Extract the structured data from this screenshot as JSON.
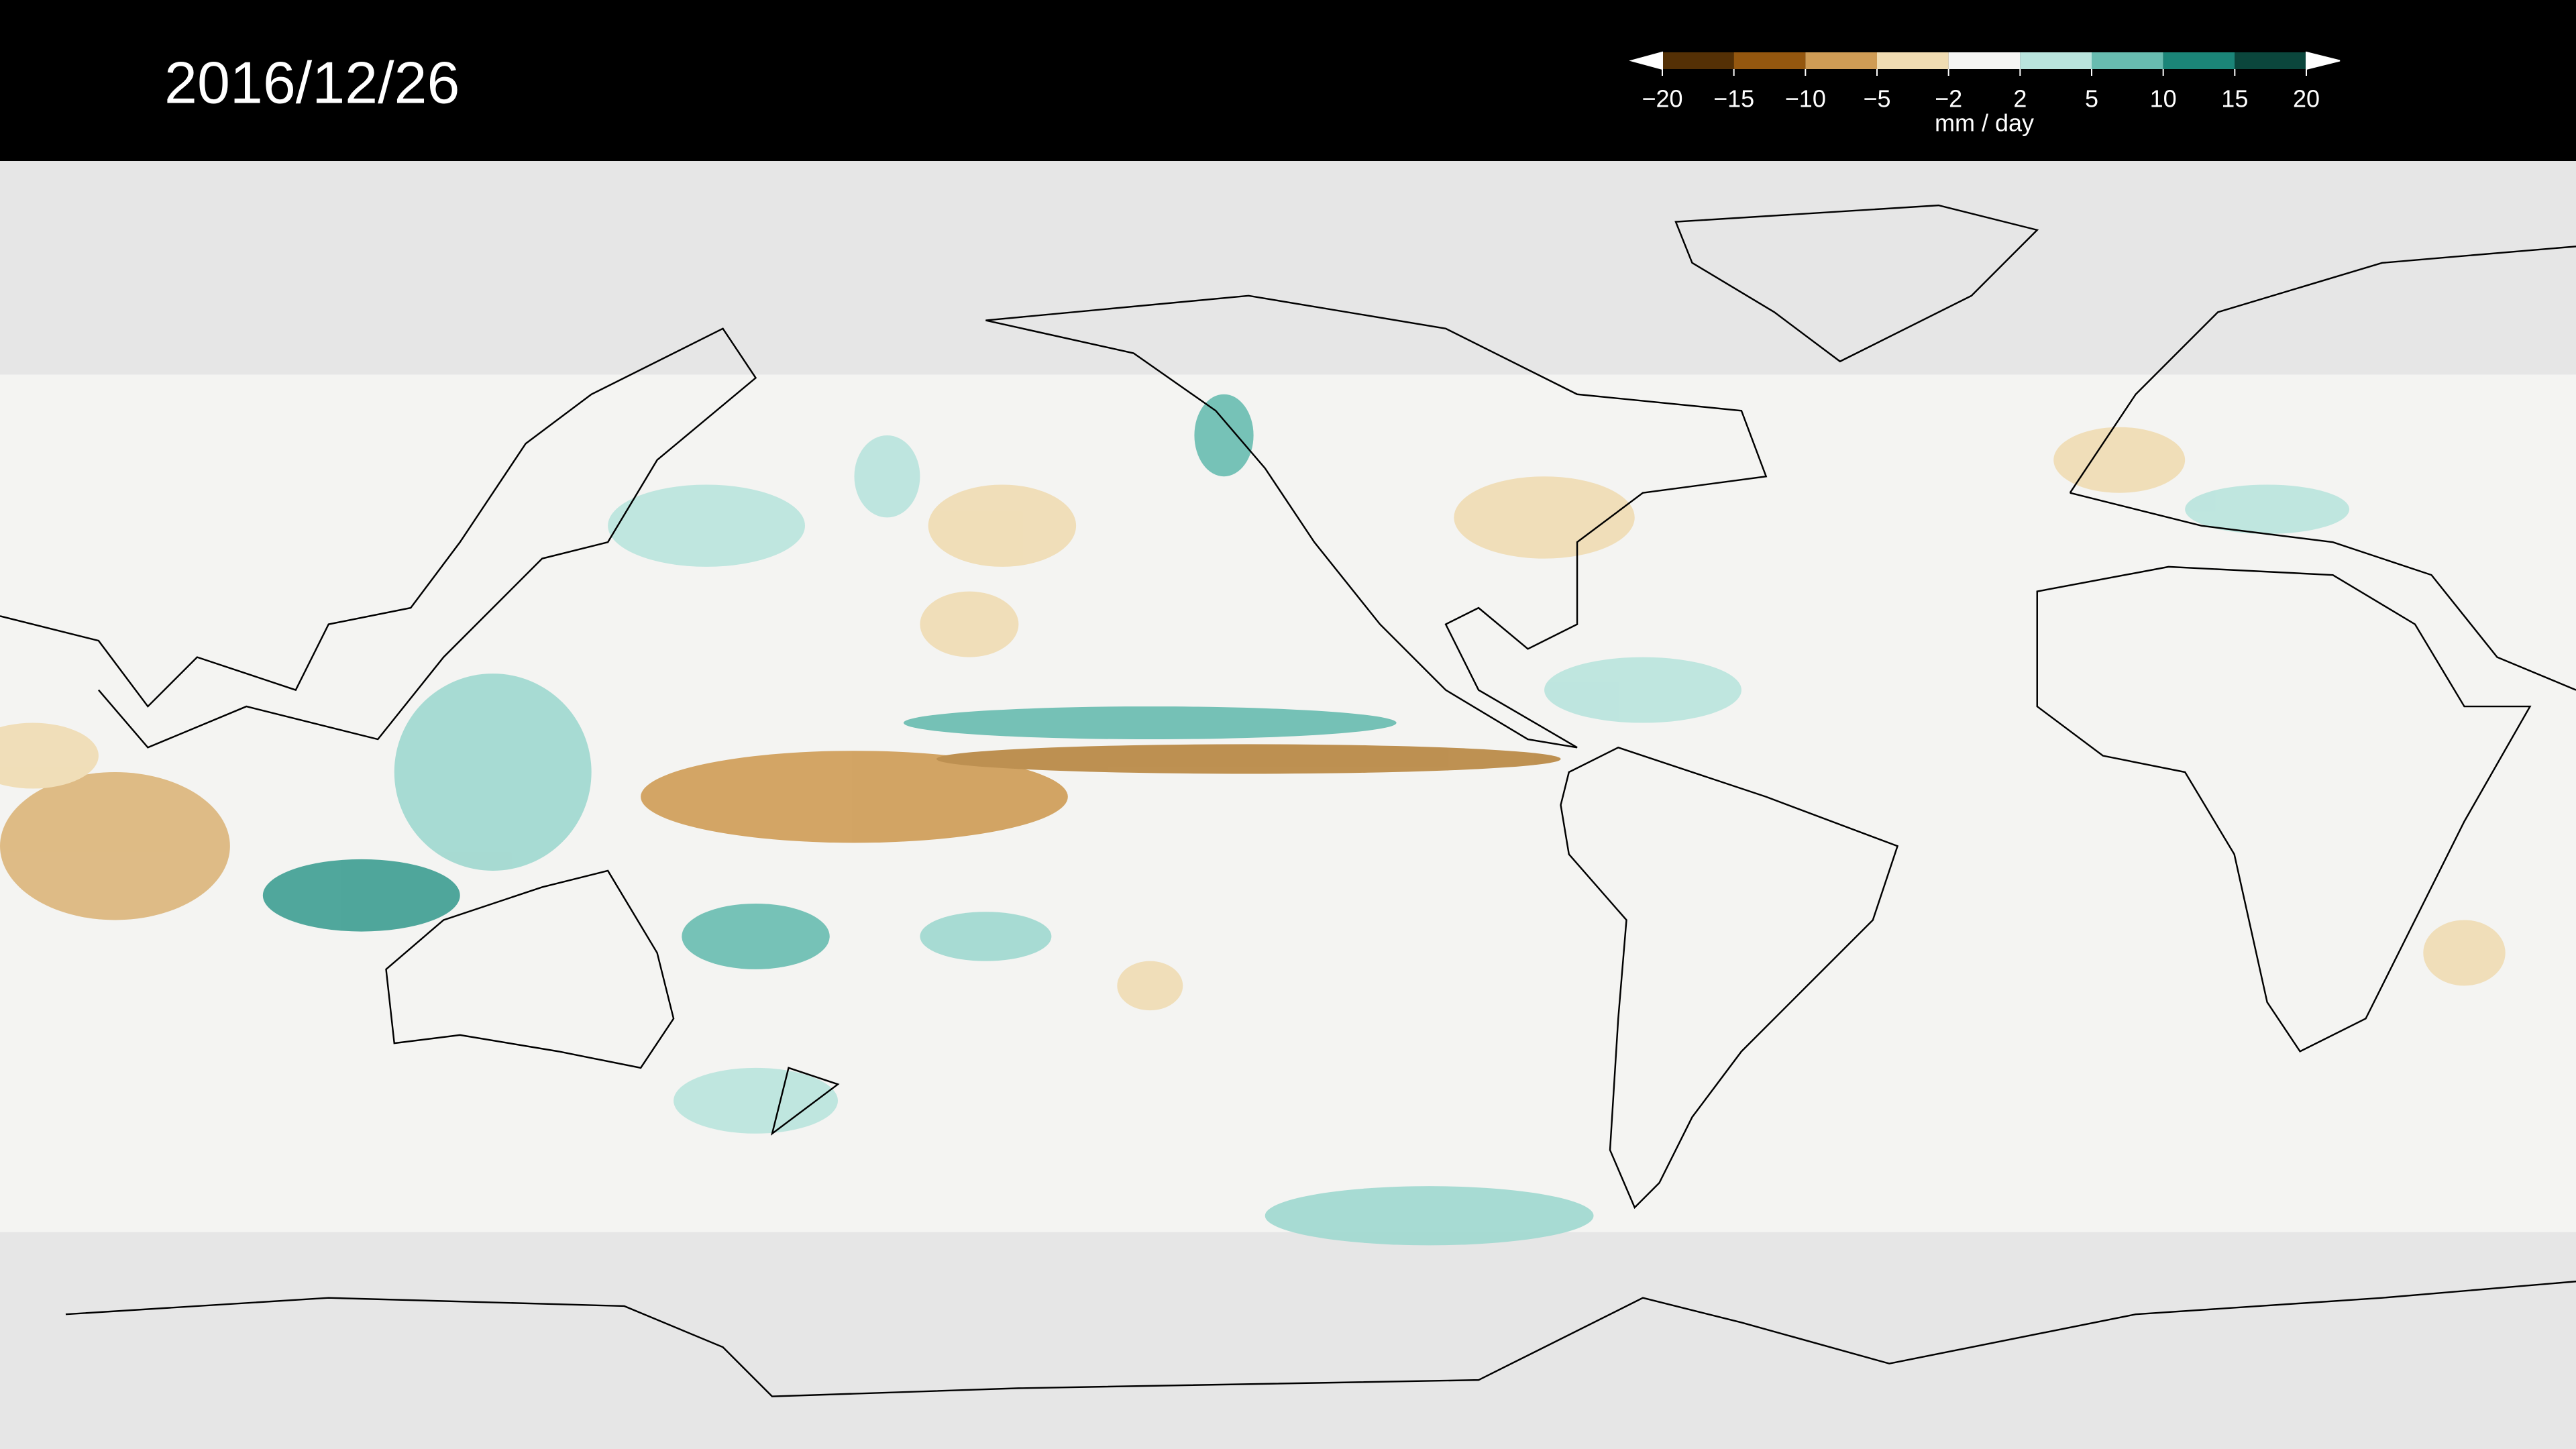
{
  "title": "2016/12/26",
  "colorbar": {
    "ticks": [
      {
        "value": -20,
        "label": "−20"
      },
      {
        "value": -15,
        "label": "−15"
      },
      {
        "value": -10,
        "label": "−10"
      },
      {
        "value": -5,
        "label": "−5"
      },
      {
        "value": -2,
        "label": "−2"
      },
      2,
      5,
      10,
      15,
      20
    ],
    "colors": [
      "#543005",
      "#94570f",
      "#cf9c55",
      "#f0dcb2",
      "#f5f5f3",
      "#b9e4dd",
      "#68bcb0",
      "#1b8578",
      "#0b463c"
    ],
    "label": "mm / day"
  }
}
